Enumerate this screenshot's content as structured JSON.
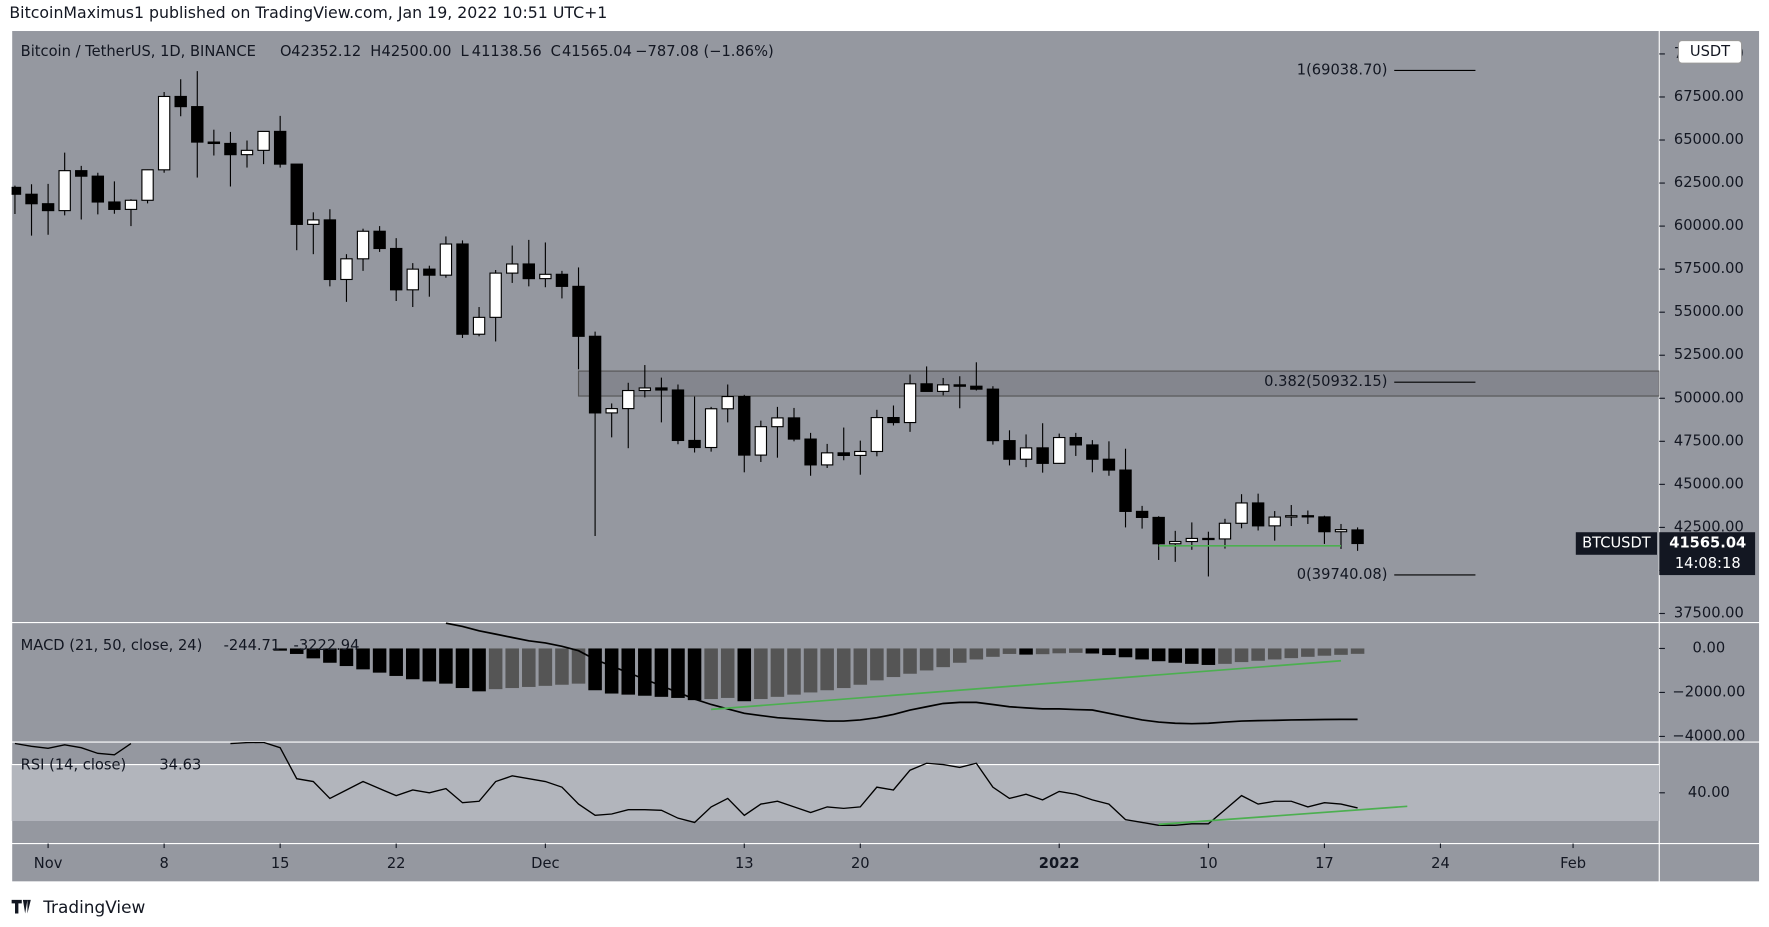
{
  "header": "BitcoinMaximus1 published on TradingView.com, Jan 19, 2022 10:51 UTC+1",
  "footer": "TradingView",
  "chart_data": [
    {
      "type": "candlestick",
      "title": "Bitcoin / TetherUS, 1D, BINANCE",
      "legend": [
        {
          "key": "O",
          "value": "42352.12"
        },
        {
          "key": "H",
          "value": "42500.00"
        },
        {
          "key": "L",
          "value": "41138.56"
        },
        {
          "key": "C",
          "value": "41565.04"
        }
      ],
      "change": "−787.08 (−1.86%)",
      "currency": "USDT",
      "symbol": "BTCUSDT",
      "countdown": "14:08:18",
      "colors": {
        "up": "#ffffff",
        "down": "#000000"
      },
      "open": [
        62250,
        61850,
        61300,
        60900,
        63220,
        62900,
        61400,
        60970,
        61500,
        63270,
        67530,
        66940,
        64880,
        64800,
        64150,
        64400,
        65500,
        63600,
        60100,
        60360,
        56900,
        58100,
        59700,
        58700,
        56300,
        57500,
        57150,
        58960,
        53720,
        54700,
        57270,
        57800,
        56950,
        57200,
        56500,
        53600,
        49150,
        49400,
        50450,
        50600,
        50480,
        47550,
        47140,
        49390,
        50100,
        46700,
        48350,
        48860,
        47630,
        46130,
        46830,
        46680,
        46910,
        48880,
        48590,
        50840,
        50400,
        50780,
        50700,
        50530,
        47540,
        46460,
        47120,
        46220,
        47720,
        47290,
        46460,
        45830,
        43430,
        43080,
        41550,
        41680,
        41860,
        41830,
        42740,
        43920,
        42590,
        43100,
        43180,
        43110,
        42250,
        42352.12
      ],
      "high": [
        62350,
        62430,
        62450,
        64270,
        63500,
        63100,
        62600,
        61560,
        63290,
        67790,
        68530,
        69000,
        65600,
        65470,
        64970,
        65500,
        66400,
        63600,
        60800,
        60980,
        58370,
        59850,
        60000,
        59300,
        57850,
        57700,
        59400,
        59170,
        55300,
        57450,
        58870,
        59200,
        59050,
        57400,
        57600,
        53870,
        49700,
        50900,
        51930,
        51200,
        50800,
        50100,
        49500,
        50800,
        50200,
        48700,
        49500,
        49440,
        47990,
        47350,
        48300,
        47540,
        49330,
        49580,
        51380,
        51850,
        51180,
        51280,
        52090,
        50700,
        48140,
        47900,
        48550,
        47950,
        47990,
        47570,
        47500,
        47070,
        43750,
        43150,
        42300,
        42790,
        42250,
        43000,
        44430,
        44460,
        43450,
        43800,
        43480,
        43180,
        42700,
        42500
      ],
      "low": [
        60700,
        59450,
        59500,
        60620,
        60380,
        60680,
        60720,
        60000,
        61320,
        63100,
        66380,
        62820,
        64100,
        62300,
        63400,
        63600,
        63400,
        58600,
        58370,
        56500,
        55600,
        57400,
        58500,
        55650,
        55300,
        55900,
        57000,
        53500,
        53600,
        53300,
        56700,
        56500,
        56450,
        55800,
        51680,
        42000,
        47730,
        47100,
        50050,
        48600,
        47330,
        46850,
        46900,
        48600,
        45700,
        46300,
        46550,
        47500,
        45500,
        45950,
        46400,
        45560,
        46630,
        48420,
        48050,
        50400,
        50170,
        49420,
        50450,
        47310,
        46100,
        46000,
        45680,
        46200,
        46650,
        45700,
        45500,
        42500,
        42430,
        40610,
        40500,
        41200,
        39650,
        41270,
        42450,
        42320,
        41730,
        42580,
        42700,
        41540,
        41250,
        41138.56
      ],
      "close": [
        61850,
        61300,
        60900,
        63220,
        62900,
        61400,
        60970,
        61500,
        63270,
        67530,
        66940,
        64880,
        64800,
        64150,
        64400,
        65500,
        63600,
        60100,
        60360,
        56900,
        58100,
        59700,
        58700,
        56300,
        57500,
        57150,
        58960,
        53720,
        54700,
        57270,
        57800,
        56950,
        57200,
        56500,
        53600,
        49150,
        49400,
        50450,
        50600,
        50480,
        47550,
        47140,
        49390,
        50100,
        46700,
        48350,
        48860,
        47630,
        46130,
        46830,
        46680,
        46910,
        48880,
        48590,
        50840,
        50400,
        50780,
        50700,
        50530,
        47540,
        46460,
        47120,
        46220,
        47720,
        47290,
        46460,
        45830,
        43430,
        43080,
        41550,
        41680,
        41860,
        41830,
        42740,
        43920,
        42590,
        43100,
        43180,
        43110,
        42250,
        42370,
        41565.04
      ],
      "xlim": [
        -0.2,
        99.2
      ],
      "xticks": [
        {
          "value": 2,
          "label": "Nov"
        },
        {
          "value": 9,
          "label": "8"
        },
        {
          "value": 16,
          "label": "15"
        },
        {
          "value": 23,
          "label": "22"
        },
        {
          "value": 32,
          "label": "Dec"
        },
        {
          "value": 44,
          "label": "13"
        },
        {
          "value": 51,
          "label": "20"
        },
        {
          "value": 63,
          "label": "2022"
        },
        {
          "value": 72,
          "label": "10"
        },
        {
          "value": 79,
          "label": "17"
        },
        {
          "value": 86,
          "label": "24"
        },
        {
          "value": 94,
          "label": "Feb"
        }
      ],
      "ylim": [
        36976,
        71364
      ],
      "yticks": [
        {
          "value": 37500,
          "label": "37500.00"
        },
        {
          "value": 40000,
          "label": "40000.00"
        },
        {
          "value": 42500,
          "label": "42500.00"
        },
        {
          "value": 45000,
          "label": "45000.00"
        },
        {
          "value": 47500,
          "label": "47500.00"
        },
        {
          "value": 50000,
          "label": "50000.00"
        },
        {
          "value": 52500,
          "label": "52500.00"
        },
        {
          "value": 55000,
          "label": "55000.00"
        },
        {
          "value": 57500,
          "label": "57500.00"
        },
        {
          "value": 60000,
          "label": "60000.00"
        },
        {
          "value": 62500,
          "label": "62500.00"
        },
        {
          "value": 65000,
          "label": "65000.00"
        },
        {
          "value": 67500,
          "label": "67500.00"
        },
        {
          "value": 70000,
          "label": "70000.00"
        }
      ],
      "fib_levels": [
        {
          "label": "1(69038.70)",
          "value": 69038.7
        },
        {
          "label": "0.382(50932.15)",
          "value": 50932.15
        },
        {
          "label": "0(39740.08)",
          "value": 39740.08
        }
      ],
      "zone": {
        "start": 34,
        "ylim": [
          50130,
          51580
        ]
      },
      "support": {
        "x": [
          69,
          80
        ],
        "y": [
          41430,
          41430
        ],
        "color": "#4caf50"
      }
    },
    {
      "type": "macd",
      "title": "MACD (21, 50, close, 24)",
      "colors": {
        "falling": "#000000",
        "rising": "#555555",
        "line": "#000000"
      },
      "histogram": [
        null,
        null,
        null,
        null,
        null,
        null,
        null,
        null,
        null,
        null,
        null,
        null,
        null,
        null,
        null,
        null,
        -100,
        -250,
        -450,
        -650,
        -800,
        -950,
        -1100,
        -1250,
        -1400,
        -1500,
        -1600,
        -1800,
        -1950,
        -1850,
        -1800,
        -1750,
        -1700,
        -1650,
        -1600,
        -1900,
        -2050,
        -2100,
        -2150,
        -2200,
        -2250,
        -2350,
        -2300,
        -2250,
        -2400,
        -2300,
        -2200,
        -2100,
        -2000,
        -1900,
        -1800,
        -1650,
        -1450,
        -1300,
        -1150,
        -1000,
        -850,
        -650,
        -500,
        -380,
        -250,
        -280,
        -260,
        -220,
        -200,
        -230,
        -300,
        -400,
        -500,
        -580,
        -650,
        -700,
        -750,
        -700,
        -620,
        -560,
        -500,
        -440,
        -380,
        -330,
        -290,
        -244.71
      ],
      "macd": [
        null,
        null,
        null,
        null,
        null,
        null,
        null,
        null,
        null,
        null,
        null,
        null,
        null,
        null,
        null,
        null,
        null,
        null,
        null,
        null,
        null,
        null,
        null,
        null,
        null,
        null,
        1150,
        1000,
        800,
        650,
        500,
        350,
        250,
        100,
        -100,
        -500,
        -800,
        -1100,
        -1400,
        -1700,
        -2000,
        -2300,
        -2550,
        -2750,
        -2950,
        -3050,
        -3150,
        -3200,
        -3250,
        -3300,
        -3300,
        -3250,
        -3150,
        -3000,
        -2800,
        -2650,
        -2500,
        -2450,
        -2450,
        -2550,
        -2650,
        -2700,
        -2750,
        -2750,
        -2780,
        -2800,
        -2950,
        -3100,
        -3250,
        -3350,
        -3400,
        -3420,
        -3400,
        -3350,
        -3300,
        -3280,
        -3270,
        -3250,
        -3240,
        -3230,
        -3225,
        -3222.94
      ],
      "ylim": [
        -4256,
        1180
      ],
      "yticks": [
        {
          "value": 0,
          "label": "0.00"
        },
        {
          "value": -2000,
          "label": "−2000.00"
        },
        {
          "value": -4000,
          "label": "−4000.00"
        }
      ],
      "trendline": {
        "x": [
          42,
          80
        ],
        "y": [
          -2770,
          -560
        ],
        "color": "#4caf50"
      }
    },
    {
      "type": "rsi",
      "title": "RSI (14, close)",
      "color": "#000000",
      "band": [
        30,
        50
      ],
      "values": [
        57.5,
        56.5,
        55.8,
        57,
        56,
        54,
        53.5,
        57.5,
        null,
        null,
        null,
        null,
        null,
        57.5,
        57.8,
        57.9,
        56,
        45,
        44,
        38,
        41,
        44,
        41.5,
        39,
        41,
        40,
        41.5,
        36.5,
        37,
        44,
        46,
        45,
        44,
        42,
        36,
        32,
        32.5,
        34,
        34,
        33.8,
        31,
        29.5,
        35,
        38,
        32,
        36,
        37,
        35,
        33,
        35,
        34.5,
        35,
        42,
        41,
        48,
        50.5,
        50,
        49,
        50.5,
        42,
        38,
        39.5,
        37.5,
        40.5,
        39.5,
        37.5,
        36,
        30.5,
        29.5,
        28.5,
        28.5,
        29,
        29,
        34,
        39,
        36,
        37,
        37,
        35,
        36.5,
        36,
        34.63
      ],
      "ylim": [
        22,
        58
      ],
      "yticks": [
        {
          "value": 40,
          "label": "40.00"
        }
      ],
      "trendline": {
        "x": [
          69,
          84
        ],
        "y": [
          28.8,
          35.2
        ],
        "color": "#4caf50"
      }
    }
  ]
}
